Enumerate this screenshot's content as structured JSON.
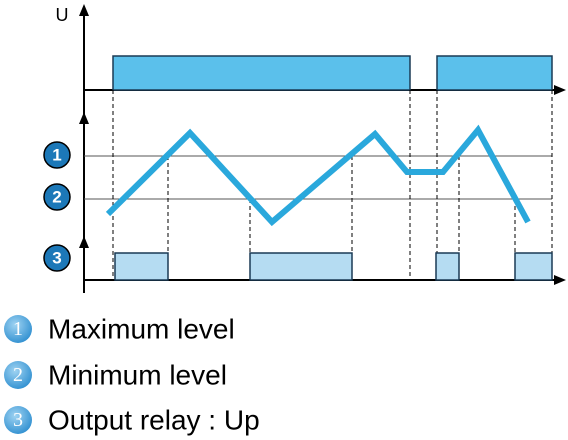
{
  "axis_label": "U",
  "markers": [
    "1",
    "2",
    "3"
  ],
  "legend": [
    {
      "number": "1",
      "text": "Maximum level"
    },
    {
      "number": "2",
      "text": "Minimum level"
    },
    {
      "number": "3",
      "text": "Output relay : Up"
    }
  ]
}
